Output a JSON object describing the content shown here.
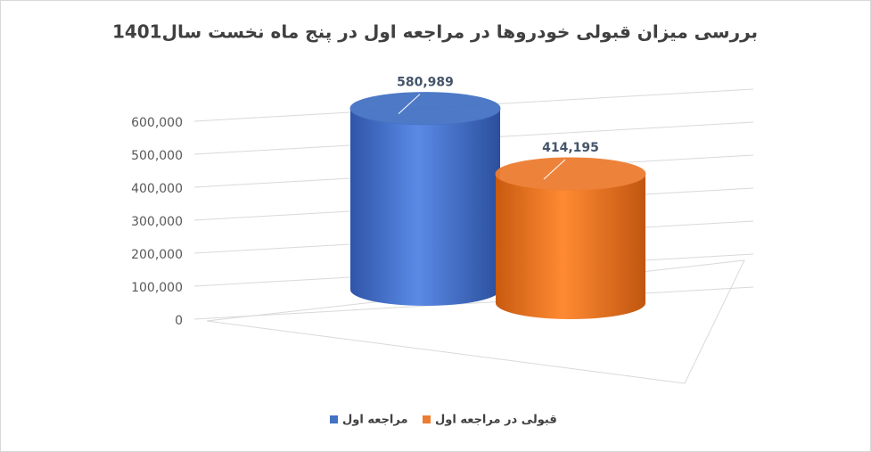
{
  "chart_data": {
    "type": "cylinder3d",
    "title": "بررسی میزان قبولی خودروها در مراجعه اول در پنج ماه نخست سال1401",
    "categories": [
      null
    ],
    "series": [
      {
        "name": "مراجعه اول",
        "color": "#4472c4",
        "values": [
          580989
        ],
        "value_labels": [
          "580,989"
        ]
      },
      {
        "name": "قبولی در مراجعه اول",
        "color": "#ed7d31",
        "values": [
          414195
        ],
        "value_labels": [
          "414,195"
        ]
      }
    ],
    "ylim": [
      0,
      600000
    ],
    "yticks": [
      0,
      {
        "value": 100000,
        "label": "100,000"
      },
      {
        "value": 200000,
        "label": "200,000"
      },
      {
        "value": 300000,
        "label": "300,000"
      },
      {
        "value": 400000,
        "label": "400,000"
      },
      {
        "value": 500000,
        "label": "500,000"
      },
      {
        "value": 600000,
        "label": "600,000"
      }
    ],
    "grid": true,
    "legend": "bottom"
  }
}
